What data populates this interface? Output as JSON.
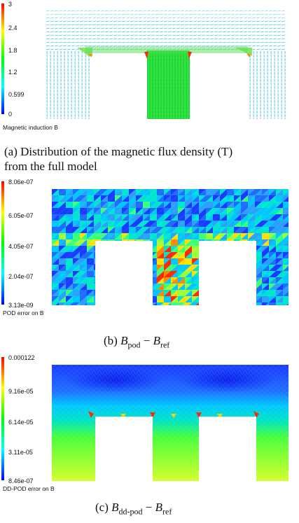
{
  "figure_a": {
    "colorbar": {
      "ticks": [
        "3",
        "2.4",
        "1.8",
        "1.2",
        "0.599",
        "0"
      ],
      "label": "Magnetic induction B"
    },
    "caption_line1": "(a) Distribution of the magnetic flux density (T)",
    "caption_line2": "from the full model",
    "colors": [
      "#ff0000",
      "#ffff00",
      "#00ff00",
      "#00ffff",
      "#0000ff"
    ]
  },
  "figure_b": {
    "colorbar": {
      "ticks": [
        "8.06e-07",
        "6.05e-07",
        "4.05e-07",
        "2.04e-07",
        "3.13e-09"
      ],
      "label": "POD error on B"
    },
    "caption_prefix": "(b)",
    "caption_sym": "B",
    "caption_sub1": "pod",
    "caption_minus": "−",
    "caption_sub2": "ref"
  },
  "figure_c": {
    "colorbar": {
      "ticks": [
        "0.000122",
        "9.16e-05",
        "6.14e-05",
        "3.11e-05",
        "8.46e-07"
      ],
      "label": "DD-POD error on B"
    },
    "caption_prefix": "(c)",
    "caption_sym": "B",
    "caption_sub1": "dd-pod",
    "caption_minus": "−",
    "caption_sub2": "ref"
  }
}
